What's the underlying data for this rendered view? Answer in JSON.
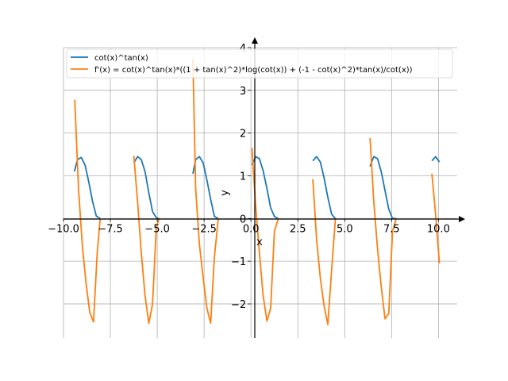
{
  "chart_data": {
    "type": "line",
    "xlabel": "x",
    "ylabel": "y",
    "xlim": [
      -10.0,
      11.0
    ],
    "ylim": [
      -2.8,
      4.0
    ],
    "grid": true,
    "legend_position": "top-left",
    "x_ticks": [
      {
        "value": -10.0,
        "label": "−10.0"
      },
      {
        "value": -7.5,
        "label": "−7.5"
      },
      {
        "value": -5.0,
        "label": "−5.0"
      },
      {
        "value": -2.5,
        "label": "−2.5"
      },
      {
        "value": 0.0,
        "label": "0.0"
      },
      {
        "value": 2.5,
        "label": "2.5"
      },
      {
        "value": 5.0,
        "label": "5.0"
      },
      {
        "value": 7.5,
        "label": "7.5"
      },
      {
        "value": 10.0,
        "label": "10.0"
      }
    ],
    "y_ticks": [
      {
        "value": -2,
        "label": "−2"
      },
      {
        "value": -1,
        "label": "−1"
      },
      {
        "value": 0,
        "label": "0"
      },
      {
        "value": 1,
        "label": "1"
      },
      {
        "value": 2,
        "label": "2"
      },
      {
        "value": 3,
        "label": "3"
      },
      {
        "value": 4,
        "label": "4"
      }
    ],
    "series": [
      {
        "name": "cot(x)^tan(x)",
        "color": "#1f77b4",
        "segments": [
          [
            [
              -9.42,
              1.1
            ],
            [
              -9.25,
              1.38
            ],
            [
              -9.05,
              1.43
            ],
            [
              -8.85,
              1.25
            ],
            [
              -8.65,
              0.85
            ],
            [
              -8.45,
              0.4
            ],
            [
              -8.25,
              0.06
            ],
            [
              -8.05,
              0.0
            ]
          ],
          [
            [
              -6.25,
              1.3
            ],
            [
              -6.05,
              1.45
            ],
            [
              -5.85,
              1.38
            ],
            [
              -5.65,
              1.1
            ],
            [
              -5.45,
              0.6
            ],
            [
              -5.25,
              0.16
            ],
            [
              -5.05,
              0.02
            ],
            [
              -4.9,
              0.0
            ]
          ],
          [
            [
              -3.1,
              1.05
            ],
            [
              -2.95,
              1.38
            ],
            [
              -2.75,
              1.45
            ],
            [
              -2.55,
              1.3
            ],
            [
              -2.35,
              0.9
            ],
            [
              -2.15,
              0.45
            ],
            [
              -1.95,
              0.05
            ],
            [
              -1.75,
              0.0
            ]
          ],
          [
            [
              0.05,
              1.25
            ],
            [
              0.25,
              1.45
            ],
            [
              0.45,
              1.4
            ],
            [
              0.65,
              1.12
            ],
            [
              0.85,
              0.7
            ],
            [
              1.05,
              0.25
            ],
            [
              1.25,
              0.05
            ],
            [
              1.45,
              0.0
            ]
          ],
          [
            [
              3.3,
              1.35
            ],
            [
              3.5,
              1.45
            ],
            [
              3.7,
              1.32
            ],
            [
              3.9,
              0.95
            ],
            [
              4.1,
              0.5
            ],
            [
              4.3,
              0.1
            ],
            [
              4.5,
              0.0
            ]
          ],
          [
            [
              6.35,
              1.22
            ],
            [
              6.55,
              1.45
            ],
            [
              6.75,
              1.4
            ],
            [
              6.95,
              1.1
            ],
            [
              7.15,
              0.65
            ],
            [
              7.35,
              0.22
            ],
            [
              7.55,
              0.0
            ],
            [
              7.75,
              0.0
            ]
          ],
          [
            [
              9.65,
              1.35
            ],
            [
              9.85,
              1.45
            ],
            [
              10.05,
              1.32
            ]
          ]
        ]
      },
      {
        "name": "f'(x) = cot(x)^tan(x)*((1 + tan(x)^2)*log(cot(x)) + (-1 - cot(x)^2)*tan(x)/cot(x))",
        "color": "#ff7f0e",
        "segments": [
          [
            [
              -9.4,
              2.78
            ],
            [
              -9.2,
              0.7
            ],
            [
              -9.0,
              -0.6
            ],
            [
              -8.8,
              -1.5
            ],
            [
              -8.6,
              -2.2
            ],
            [
              -8.4,
              -2.42
            ],
            [
              -8.2,
              -0.8
            ],
            [
              -8.05,
              -0.02
            ]
          ],
          [
            [
              -6.25,
              1.47
            ],
            [
              -6.05,
              0.4
            ],
            [
              -5.85,
              -0.8
            ],
            [
              -5.65,
              -1.8
            ],
            [
              -5.45,
              -2.45
            ],
            [
              -5.25,
              -2.0
            ],
            [
              -5.05,
              -0.2
            ],
            [
              -4.9,
              0.0
            ]
          ],
          [
            [
              -3.1,
              3.72
            ],
            [
              -2.95,
              0.7
            ],
            [
              -2.75,
              -0.6
            ],
            [
              -2.55,
              -1.4
            ],
            [
              -2.35,
              -2.1
            ],
            [
              -2.15,
              -2.45
            ],
            [
              -1.95,
              -0.9
            ],
            [
              -1.75,
              -0.02
            ]
          ],
          [
            [
              0.05,
              1.65
            ],
            [
              0.25,
              0.3
            ],
            [
              0.45,
              -0.8
            ],
            [
              0.65,
              -1.8
            ],
            [
              0.85,
              -2.4
            ],
            [
              1.05,
              -2.1
            ],
            [
              1.25,
              -0.3
            ],
            [
              1.45,
              -0.02
            ]
          ],
          [
            [
              3.3,
              0.92
            ],
            [
              3.5,
              -0.5
            ],
            [
              3.7,
              -1.4
            ],
            [
              3.9,
              -2.05
            ],
            [
              4.1,
              -2.48
            ],
            [
              4.3,
              -1.2
            ],
            [
              4.5,
              -0.02
            ]
          ],
          [
            [
              6.35,
              1.88
            ],
            [
              6.55,
              0.4
            ],
            [
              6.75,
              -0.7
            ],
            [
              6.95,
              -1.6
            ],
            [
              7.15,
              -2.35
            ],
            [
              7.35,
              -2.22
            ],
            [
              7.55,
              -0.3
            ],
            [
              7.75,
              0.0
            ]
          ],
          [
            [
              9.65,
              1.05
            ],
            [
              9.85,
              0.1
            ],
            [
              10.05,
              -1.05
            ]
          ]
        ]
      }
    ]
  }
}
